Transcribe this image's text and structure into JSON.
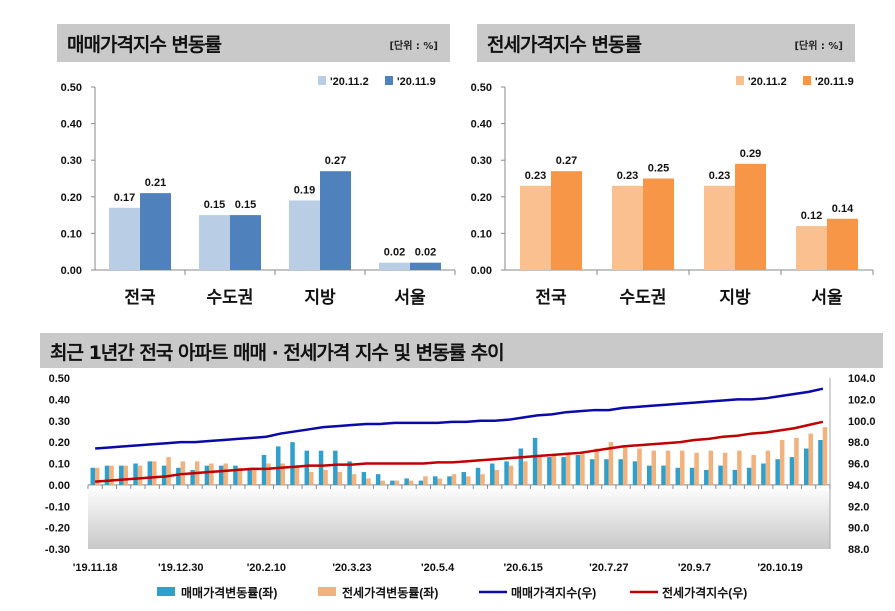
{
  "chart_data": [
    {
      "type": "bar",
      "title": "매매가격지수 변동률",
      "unit_note": "[단위 : %]",
      "categories": [
        "전국",
        "수도권",
        "지방",
        "서울"
      ],
      "series": [
        {
          "name": "'20.11.2",
          "values": [
            0.17,
            0.15,
            0.19,
            0.02
          ],
          "color": "#b9cde5"
        },
        {
          "name": "'20.11.9",
          "values": [
            0.21,
            0.15,
            0.27,
            0.02
          ],
          "color": "#4f81bd"
        }
      ],
      "ylim": [
        0,
        0.5
      ],
      "yticks": [
        "0.00",
        "0.10",
        "0.20",
        "0.30",
        "0.40",
        "0.50"
      ],
      "legend": "top-right"
    },
    {
      "type": "bar",
      "title": "전세가격지수 변동률",
      "unit_note": "[단위 : %]",
      "categories": [
        "전국",
        "수도권",
        "지방",
        "서울"
      ],
      "series": [
        {
          "name": "'20.11.2",
          "values": [
            0.23,
            0.23,
            0.23,
            0.12
          ],
          "color": "#fac090"
        },
        {
          "name": "'20.11.9",
          "values": [
            0.27,
            0.25,
            0.29,
            0.14
          ],
          "color": "#f79646"
        }
      ],
      "ylim": [
        0,
        0.5
      ],
      "yticks": [
        "0.00",
        "0.10",
        "0.20",
        "0.30",
        "0.40",
        "0.50"
      ],
      "legend": "top-right"
    },
    {
      "type": "bar+line",
      "title": "최근 1년간 전국 아파트 매매 · 전세가격 지수 및 변동률 추이",
      "x_tick_labels": [
        "'19.11.18",
        "'19.12.30",
        "'20.2.10",
        "'20.3.23",
        "'20.5.4",
        "'20.6.15",
        "'20.7.27",
        "'20.9.7",
        "'20.10.19"
      ],
      "points": 52,
      "y_left": {
        "lim": [
          -0.3,
          0.5
        ],
        "ticks": [
          "0.50",
          "0.40",
          "0.30",
          "0.20",
          "0.10",
          "0.00",
          "-0.10",
          "-0.20",
          "-0.30"
        ]
      },
      "y_right": {
        "lim": [
          88,
          104
        ],
        "ticks": [
          "104.0",
          "102.0",
          "100.0",
          "98.0",
          "96.0",
          "94.0",
          "92.0",
          "90.0",
          "88.0"
        ]
      },
      "series": [
        {
          "name": "매매가격변동률(좌)",
          "kind": "bar",
          "axis": "left",
          "color": "#2f9fcb",
          "values": [
            0.08,
            0.09,
            0.09,
            0.1,
            0.11,
            0.09,
            0.08,
            0.07,
            0.09,
            0.09,
            0.09,
            0.08,
            0.14,
            0.18,
            0.2,
            0.16,
            0.16,
            0.16,
            0.11,
            0.06,
            0.05,
            0.02,
            0.03,
            0.02,
            0.04,
            0.04,
            0.06,
            0.08,
            0.1,
            0.11,
            0.17,
            0.22,
            0.13,
            0.13,
            0.14,
            0.12,
            0.12,
            0.12,
            0.11,
            0.09,
            0.09,
            0.08,
            0.08,
            0.07,
            0.09,
            0.07,
            0.08,
            0.1,
            0.12,
            0.13,
            0.17,
            0.21
          ]
        },
        {
          "name": "전세가격변동률(좌)",
          "kind": "bar",
          "axis": "left",
          "color": "#f2b27e",
          "values": [
            0.08,
            0.09,
            0.09,
            0.09,
            0.11,
            0.13,
            0.11,
            0.11,
            0.1,
            0.1,
            0.08,
            0.08,
            0.1,
            0.1,
            0.09,
            0.06,
            0.07,
            0.06,
            0.05,
            0.03,
            0.02,
            0.02,
            0.02,
            0.04,
            0.03,
            0.05,
            0.04,
            0.05,
            0.07,
            0.09,
            0.11,
            0.13,
            0.14,
            0.14,
            0.15,
            0.17,
            0.2,
            0.18,
            0.17,
            0.16,
            0.16,
            0.16,
            0.15,
            0.16,
            0.15,
            0.16,
            0.14,
            0.16,
            0.21,
            0.22,
            0.24,
            0.27
          ]
        },
        {
          "name": "매매가격지수(우)",
          "kind": "line",
          "axis": "right",
          "color": "#0a0aa8",
          "values": [
            97.4,
            97.5,
            97.6,
            97.7,
            97.8,
            97.9,
            98.0,
            98.0,
            98.1,
            98.2,
            98.3,
            98.4,
            98.5,
            98.8,
            99.0,
            99.2,
            99.4,
            99.5,
            99.6,
            99.7,
            99.7,
            99.8,
            99.8,
            99.8,
            99.8,
            99.9,
            99.9,
            100.0,
            100.0,
            100.1,
            100.3,
            100.5,
            100.6,
            100.8,
            100.9,
            101.0,
            101.0,
            101.2,
            101.3,
            101.4,
            101.5,
            101.6,
            101.7,
            101.8,
            101.9,
            102.0,
            102.0,
            102.1,
            102.3,
            102.5,
            102.7,
            103.0
          ]
        },
        {
          "name": "전세가격지수(우)",
          "kind": "line",
          "axis": "right",
          "color": "#c00000",
          "values": [
            94.3,
            94.4,
            94.5,
            94.6,
            94.7,
            94.8,
            95.0,
            95.1,
            95.2,
            95.3,
            95.4,
            95.5,
            95.5,
            95.6,
            95.7,
            95.8,
            95.8,
            95.9,
            95.9,
            96.0,
            96.0,
            96.0,
            96.0,
            96.0,
            96.1,
            96.1,
            96.2,
            96.3,
            96.4,
            96.5,
            96.6,
            96.7,
            96.8,
            96.9,
            97.0,
            97.2,
            97.4,
            97.6,
            97.7,
            97.8,
            97.9,
            98.0,
            98.2,
            98.3,
            98.5,
            98.6,
            98.8,
            98.9,
            99.1,
            99.3,
            99.6,
            99.9
          ]
        }
      ],
      "legend": "bottom"
    }
  ]
}
